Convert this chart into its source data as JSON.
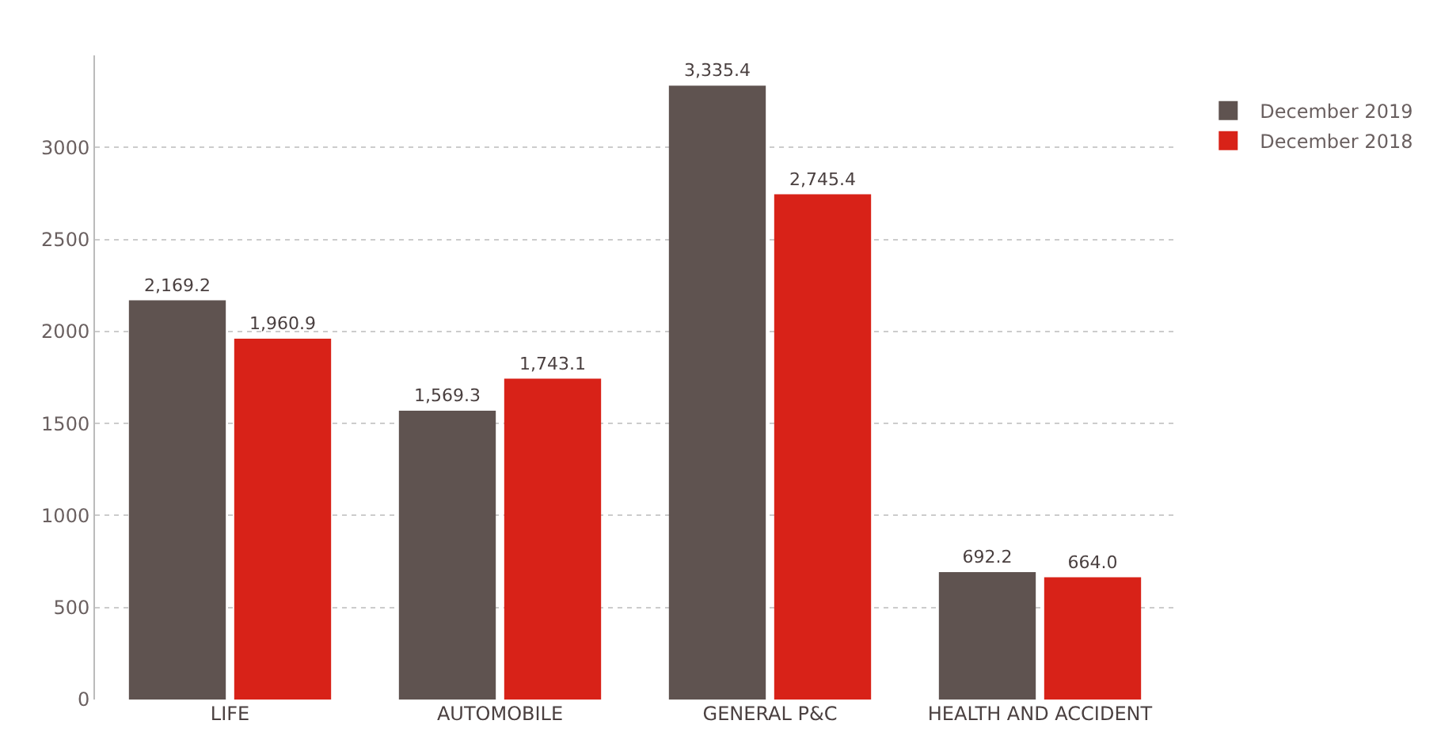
{
  "chart_data": {
    "type": "bar",
    "categories": [
      "LIFE",
      "AUTOMOBILE",
      "GENERAL P&C",
      "HEALTH AND ACCIDENT"
    ],
    "series": [
      {
        "name": "December 2019",
        "color": "#5f5350",
        "values": [
          2169.2,
          1569.3,
          3335.4,
          692.2
        ],
        "value_labels": [
          "2,169.2",
          "1,569.3",
          "3,335.4",
          "692.2"
        ]
      },
      {
        "name": "December 2018",
        "color": "#d82218",
        "values": [
          1960.9,
          1743.1,
          2745.4,
          664.0
        ],
        "value_labels": [
          "1,960.9",
          "1,743.1",
          "2,745.4",
          "664.0"
        ]
      }
    ],
    "ylim": [
      0,
      3500
    ],
    "yticks": [
      0,
      500,
      1000,
      1500,
      2000,
      2500,
      3000
    ],
    "grid": "y",
    "legend": "top right"
  }
}
